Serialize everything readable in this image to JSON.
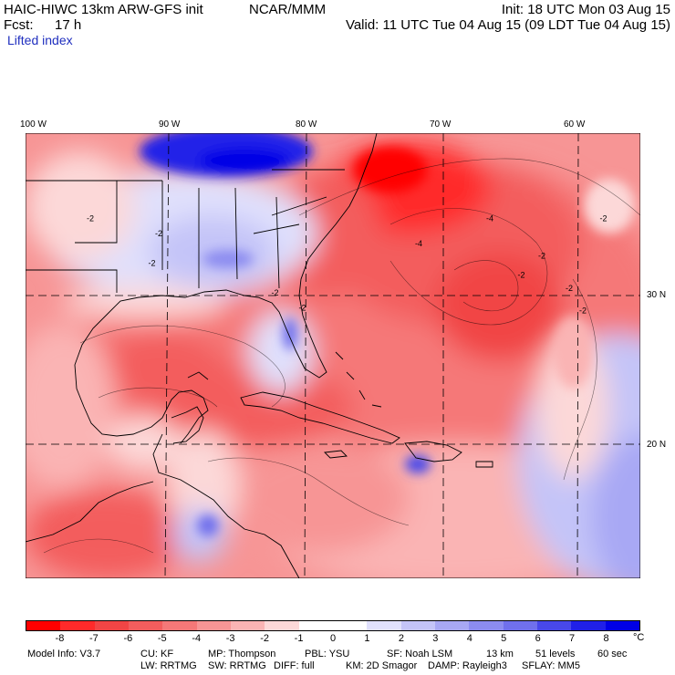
{
  "header": {
    "model": "HAIC-HIWC 13km ARW-GFS init",
    "org": "NCAR/MMM",
    "init": "Init: 18 UTC Mon 03 Aug 15",
    "fcst_label": "Fcst:",
    "fcst_value": "17 h",
    "valid": "Valid: 11 UTC Tue 04 Aug 15 (09 LDT Tue 04 Aug 15)"
  },
  "field_name": "Lifted index",
  "axes": {
    "longitudes": [
      {
        "label": "100 W",
        "lon": -100
      },
      {
        "label": "90 W",
        "lon": -90
      },
      {
        "label": "80 W",
        "lon": -80
      },
      {
        "label": "70 W",
        "lon": -70
      },
      {
        "label": "60 W",
        "lon": -60
      }
    ],
    "latitudes": [
      {
        "label": "30 N",
        "lat": 30
      },
      {
        "label": "20 N",
        "lat": 20
      }
    ]
  },
  "contour_labels": [
    {
      "text": "-2",
      "lon": -96.0,
      "lat": 35.0
    },
    {
      "text": "-2",
      "lon": -91.0,
      "lat": 34.0
    },
    {
      "text": "-2",
      "lon": -91.5,
      "lat": 32.0
    },
    {
      "text": "-4",
      "lon": -72.0,
      "lat": 33.3
    },
    {
      "text": "-4",
      "lon": -66.8,
      "lat": 35.0
    },
    {
      "text": "-2",
      "lon": -63.0,
      "lat": 32.5
    },
    {
      "text": "-2",
      "lon": -64.5,
      "lat": 31.2
    },
    {
      "text": "-2",
      "lon": -61.0,
      "lat": 30.3
    },
    {
      "text": "-2",
      "lon": -60.0,
      "lat": 28.8
    },
    {
      "text": "-2",
      "lon": -58.5,
      "lat": 35.0
    },
    {
      "text": "-2",
      "lon": -82.5,
      "lat": 30.0
    },
    {
      "text": "-2",
      "lon": -80.5,
      "lat": 29.0
    }
  ],
  "colors": {
    "neg8": "#ff0000",
    "neg7": "#ff2a2a",
    "neg6": "#f14545",
    "neg5": "#f35d5d",
    "neg4": "#f57878",
    "neg3": "#f79595",
    "neg2": "#fab4b4",
    "neg1": "#fcd8d8",
    "zero_lo": "#ffffff",
    "zero_hi": "#ffffff",
    "pos1": "#e0e0fc",
    "pos2": "#c4c4f8",
    "pos3": "#a8a8f4",
    "pos4": "#8c8cf0",
    "pos5": "#7070ec",
    "pos6": "#4848ea",
    "pos7": "#2020e8",
    "pos8": "#0000e6"
  },
  "colorbar": {
    "ticks": [
      "-8",
      "-7",
      "-6",
      "-5",
      "-4",
      "-3",
      "-2",
      "-1",
      "0",
      "1",
      "2",
      "3",
      "4",
      "5",
      "6",
      "7",
      "8"
    ],
    "unit": "°C"
  },
  "footer": {
    "line1": {
      "model_info": "Model Info: V3.7",
      "cu": "CU: KF",
      "mp": "MP: Thompson",
      "pbl": "PBL: YSU",
      "sf": "SF: Noah LSM",
      "res": "13 km",
      "levels": "51 levels",
      "dt": "60 sec"
    },
    "line2": {
      "lw": "LW: RRTMG",
      "sw": "SW: RRTMG",
      "diff": "DIFF: full",
      "km": "KM: 2D Smagor",
      "damp": "DAMP: Rayleigh3",
      "sflay": "SFLAY: MM5"
    }
  }
}
